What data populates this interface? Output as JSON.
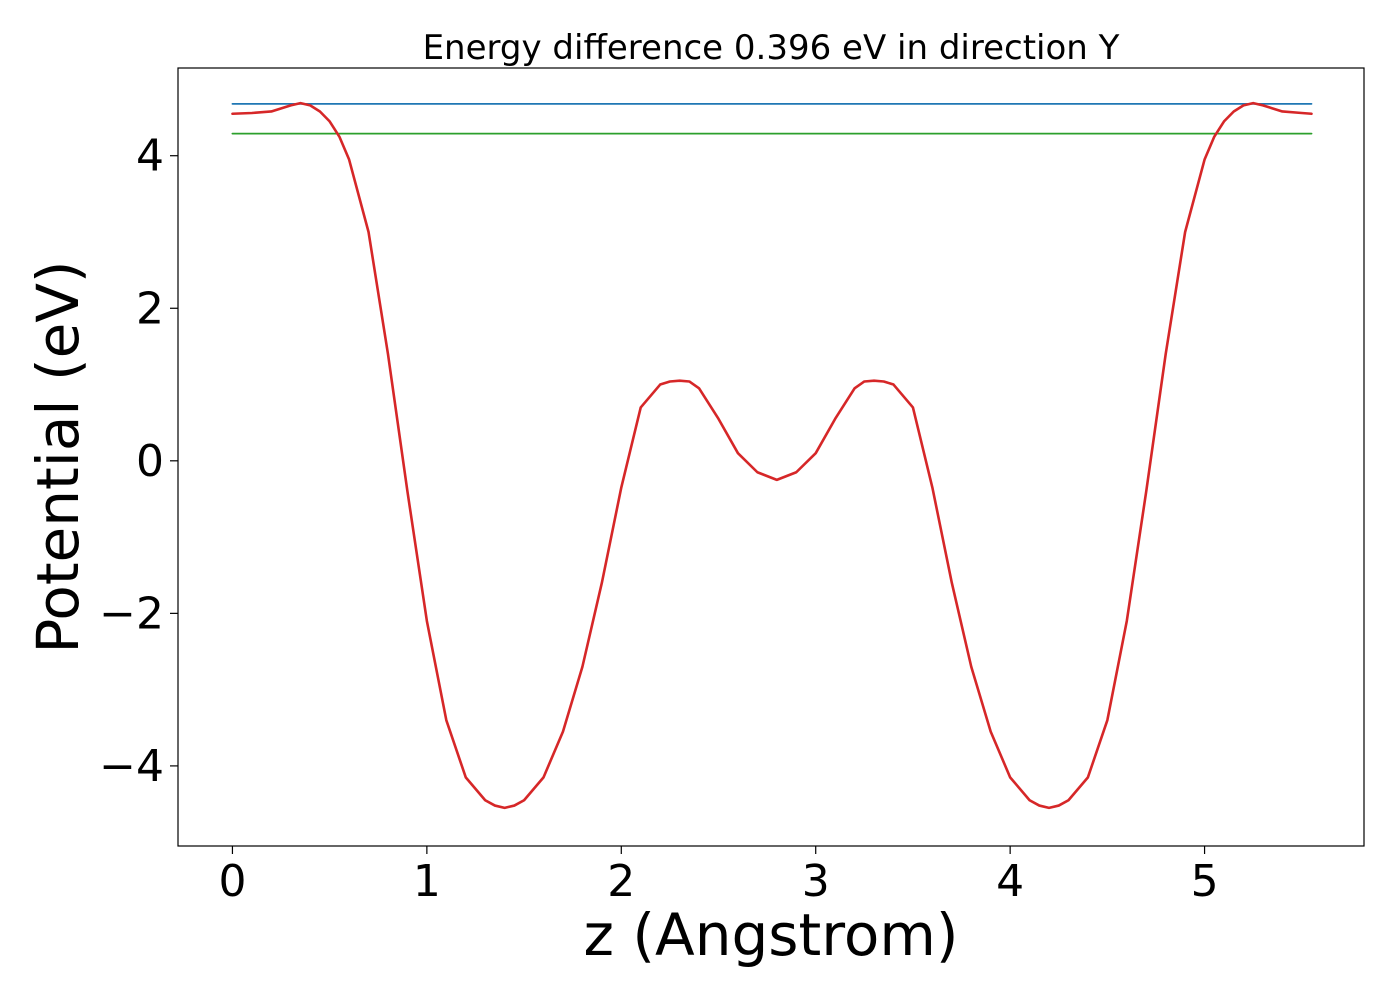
{
  "chart_data": {
    "type": "line",
    "title": "Energy difference 0.396 eV in direction Y",
    "xlabel": "z (Angstrom)",
    "ylabel": "Potential (eV)",
    "xlim": [
      -0.28,
      5.82
    ],
    "ylim": [
      -5.05,
      5.15
    ],
    "grid": false,
    "x_ticks": [
      0,
      1,
      2,
      3,
      4,
      5
    ],
    "x_tick_labels": [
      "0",
      "1",
      "2",
      "3",
      "4",
      "5"
    ],
    "y_ticks": [
      -4,
      -2,
      0,
      2,
      4
    ],
    "y_tick_labels": [
      "−4",
      "−2",
      "0",
      "2",
      "4"
    ],
    "series": [
      {
        "color": "#1f77b4",
        "x": [
          0,
          5.55
        ],
        "y": [
          4.68,
          4.68
        ]
      },
      {
        "color": "#2ca02c",
        "x": [
          0,
          5.55
        ],
        "y": [
          4.29,
          4.29
        ]
      },
      {
        "color": "#d62728",
        "x": [
          0,
          0.1,
          0.2,
          0.3,
          0.35,
          0.4,
          0.45,
          0.5,
          0.55,
          0.6,
          0.7,
          0.8,
          0.9,
          1.0,
          1.1,
          1.2,
          1.3,
          1.35,
          1.4,
          1.45,
          1.5,
          1.6,
          1.7,
          1.8,
          1.9,
          2.0,
          2.1,
          2.2,
          2.25,
          2.3,
          2.35,
          2.4,
          2.5,
          2.6,
          2.7,
          2.8,
          2.9,
          3.0,
          3.1,
          3.2,
          3.25,
          3.3,
          3.35,
          3.4,
          3.5,
          3.6,
          3.7,
          3.8,
          3.9,
          4.0,
          4.1,
          4.15,
          4.2,
          4.25,
          4.3,
          4.4,
          4.5,
          4.6,
          4.7,
          4.8,
          4.9,
          5.0,
          5.05,
          5.1,
          5.15,
          5.2,
          5.25,
          5.3,
          5.4,
          5.5,
          5.55
        ],
        "y": [
          4.55,
          4.56,
          4.58,
          4.66,
          4.69,
          4.66,
          4.58,
          4.45,
          4.25,
          3.95,
          3.0,
          1.4,
          -0.4,
          -2.1,
          -3.4,
          -4.15,
          -4.45,
          -4.52,
          -4.55,
          -4.52,
          -4.45,
          -4.15,
          -3.55,
          -2.7,
          -1.6,
          -0.35,
          0.7,
          1.0,
          1.04,
          1.05,
          1.04,
          0.95,
          0.55,
          0.1,
          -0.15,
          -0.25,
          -0.15,
          0.1,
          0.55,
          0.95,
          1.04,
          1.05,
          1.04,
          1.0,
          0.7,
          -0.35,
          -1.6,
          -2.7,
          -3.55,
          -4.15,
          -4.45,
          -4.52,
          -4.55,
          -4.52,
          -4.45,
          -4.15,
          -3.4,
          -2.1,
          -0.4,
          1.4,
          3.0,
          3.95,
          4.25,
          4.45,
          4.58,
          4.66,
          4.69,
          4.66,
          4.58,
          4.56,
          4.55
        ]
      }
    ]
  }
}
